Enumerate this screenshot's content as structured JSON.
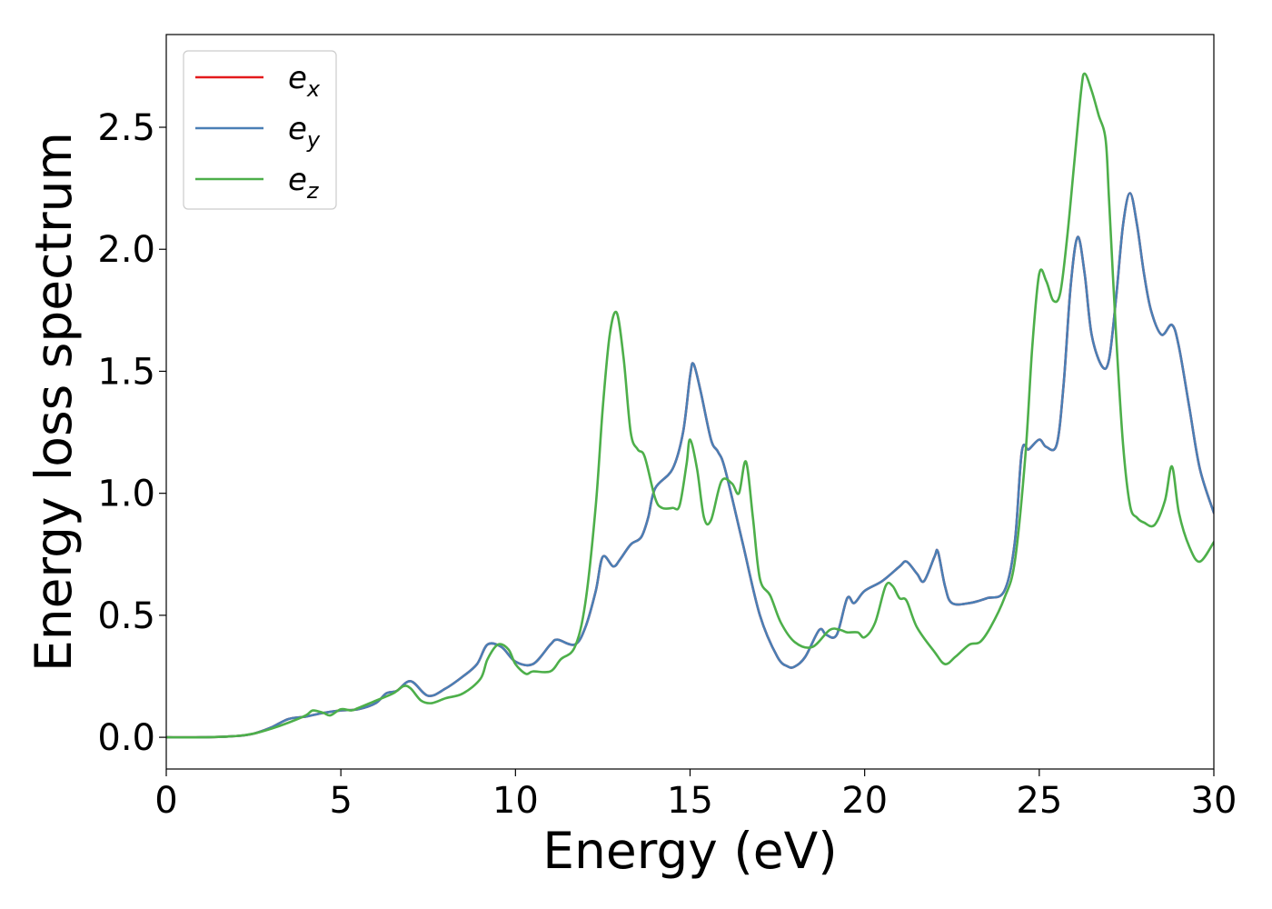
{
  "chart_data": {
    "type": "line",
    "title": "",
    "xlabel": "Energy (eV)",
    "ylabel": "Energy loss spectrum",
    "xlim": [
      0,
      30
    ],
    "ylim": [
      -0.13,
      2.88
    ],
    "xticks": [
      0,
      5,
      10,
      15,
      20,
      25,
      30
    ],
    "xtick_labels": [
      "0",
      "5",
      "10",
      "15",
      "20",
      "25",
      "30"
    ],
    "yticks": [
      0.0,
      0.5,
      1.0,
      1.5,
      2.0,
      2.5
    ],
    "ytick_labels": [
      "0.0",
      "0.5",
      "1.0",
      "1.5",
      "2.0",
      "2.5"
    ],
    "grid": false,
    "legend_position": "top-left",
    "series": [
      {
        "name": "e",
        "sub": "x",
        "color": "#e41a1c",
        "points": [
          [
            0,
            0
          ],
          [
            1,
            0
          ],
          [
            2,
            0.005
          ],
          [
            2.5,
            0.015
          ],
          [
            3,
            0.04
          ],
          [
            3.5,
            0.075
          ],
          [
            4,
            0.085
          ],
          [
            4.5,
            0.1
          ],
          [
            5,
            0.11
          ],
          [
            5.5,
            0.115
          ],
          [
            6,
            0.14
          ],
          [
            6.3,
            0.18
          ],
          [
            6.6,
            0.19
          ],
          [
            7,
            0.23
          ],
          [
            7.5,
            0.17
          ],
          [
            8,
            0.2
          ],
          [
            8.5,
            0.25
          ],
          [
            8.9,
            0.3
          ],
          [
            9.2,
            0.38
          ],
          [
            9.6,
            0.37
          ],
          [
            10,
            0.31
          ],
          [
            10.5,
            0.3
          ],
          [
            11,
            0.38
          ],
          [
            11.2,
            0.4
          ],
          [
            11.7,
            0.38
          ],
          [
            12,
            0.45
          ],
          [
            12.3,
            0.6
          ],
          [
            12.5,
            0.74
          ],
          [
            12.8,
            0.7
          ],
          [
            13,
            0.73
          ],
          [
            13.3,
            0.79
          ],
          [
            13.6,
            0.82
          ],
          [
            13.8,
            0.9
          ],
          [
            14,
            1.02
          ],
          [
            14.5,
            1.1
          ],
          [
            14.8,
            1.25
          ],
          [
            15,
            1.48
          ],
          [
            15.1,
            1.53
          ],
          [
            15.3,
            1.42
          ],
          [
            15.6,
            1.22
          ],
          [
            15.8,
            1.17
          ],
          [
            16,
            1.1
          ],
          [
            16.5,
            0.8
          ],
          [
            17,
            0.5
          ],
          [
            17.5,
            0.33
          ],
          [
            17.8,
            0.29
          ],
          [
            18,
            0.29
          ],
          [
            18.3,
            0.33
          ],
          [
            18.7,
            0.44
          ],
          [
            18.9,
            0.42
          ],
          [
            19.2,
            0.42
          ],
          [
            19.5,
            0.57
          ],
          [
            19.7,
            0.55
          ],
          [
            20,
            0.6
          ],
          [
            20.5,
            0.64
          ],
          [
            21,
            0.7
          ],
          [
            21.2,
            0.72
          ],
          [
            21.5,
            0.67
          ],
          [
            21.7,
            0.64
          ],
          [
            22,
            0.74
          ],
          [
            22.1,
            0.76
          ],
          [
            22.3,
            0.62
          ],
          [
            22.5,
            0.55
          ],
          [
            23,
            0.55
          ],
          [
            23.5,
            0.57
          ],
          [
            24,
            0.6
          ],
          [
            24.3,
            0.8
          ],
          [
            24.5,
            1.17
          ],
          [
            24.7,
            1.18
          ],
          [
            25,
            1.22
          ],
          [
            25.2,
            1.19
          ],
          [
            25.5,
            1.2
          ],
          [
            25.7,
            1.45
          ],
          [
            25.9,
            1.85
          ],
          [
            26.1,
            2.05
          ],
          [
            26.3,
            1.9
          ],
          [
            26.5,
            1.65
          ],
          [
            26.8,
            1.52
          ],
          [
            27,
            1.55
          ],
          [
            27.2,
            1.8
          ],
          [
            27.4,
            2.1
          ],
          [
            27.6,
            2.23
          ],
          [
            27.8,
            2.1
          ],
          [
            28,
            1.9
          ],
          [
            28.2,
            1.75
          ],
          [
            28.5,
            1.65
          ],
          [
            28.8,
            1.69
          ],
          [
            29,
            1.6
          ],
          [
            29.3,
            1.35
          ],
          [
            29.6,
            1.1
          ],
          [
            30,
            0.92
          ]
        ]
      },
      {
        "name": "e",
        "sub": "y",
        "color": "#4a7fb5",
        "points": [
          [
            0,
            0
          ],
          [
            1,
            0
          ],
          [
            2,
            0.005
          ],
          [
            2.5,
            0.015
          ],
          [
            3,
            0.04
          ],
          [
            3.5,
            0.075
          ],
          [
            4,
            0.085
          ],
          [
            4.5,
            0.1
          ],
          [
            5,
            0.11
          ],
          [
            5.5,
            0.115
          ],
          [
            6,
            0.14
          ],
          [
            6.3,
            0.18
          ],
          [
            6.6,
            0.19
          ],
          [
            7,
            0.23
          ],
          [
            7.5,
            0.17
          ],
          [
            8,
            0.2
          ],
          [
            8.5,
            0.25
          ],
          [
            8.9,
            0.3
          ],
          [
            9.2,
            0.38
          ],
          [
            9.6,
            0.37
          ],
          [
            10,
            0.31
          ],
          [
            10.5,
            0.3
          ],
          [
            11,
            0.38
          ],
          [
            11.2,
            0.4
          ],
          [
            11.7,
            0.38
          ],
          [
            12,
            0.45
          ],
          [
            12.3,
            0.6
          ],
          [
            12.5,
            0.74
          ],
          [
            12.8,
            0.7
          ],
          [
            13,
            0.73
          ],
          [
            13.3,
            0.79
          ],
          [
            13.6,
            0.82
          ],
          [
            13.8,
            0.9
          ],
          [
            14,
            1.02
          ],
          [
            14.5,
            1.1
          ],
          [
            14.8,
            1.25
          ],
          [
            15,
            1.48
          ],
          [
            15.1,
            1.53
          ],
          [
            15.3,
            1.42
          ],
          [
            15.6,
            1.22
          ],
          [
            15.8,
            1.17
          ],
          [
            16,
            1.1
          ],
          [
            16.5,
            0.8
          ],
          [
            17,
            0.5
          ],
          [
            17.5,
            0.33
          ],
          [
            17.8,
            0.29
          ],
          [
            18,
            0.29
          ],
          [
            18.3,
            0.33
          ],
          [
            18.7,
            0.44
          ],
          [
            18.9,
            0.42
          ],
          [
            19.2,
            0.42
          ],
          [
            19.5,
            0.57
          ],
          [
            19.7,
            0.55
          ],
          [
            20,
            0.6
          ],
          [
            20.5,
            0.64
          ],
          [
            21,
            0.7
          ],
          [
            21.2,
            0.72
          ],
          [
            21.5,
            0.67
          ],
          [
            21.7,
            0.64
          ],
          [
            22,
            0.74
          ],
          [
            22.1,
            0.76
          ],
          [
            22.3,
            0.62
          ],
          [
            22.5,
            0.55
          ],
          [
            23,
            0.55
          ],
          [
            23.5,
            0.57
          ],
          [
            24,
            0.6
          ],
          [
            24.3,
            0.8
          ],
          [
            24.5,
            1.17
          ],
          [
            24.7,
            1.18
          ],
          [
            25,
            1.22
          ],
          [
            25.2,
            1.19
          ],
          [
            25.5,
            1.2
          ],
          [
            25.7,
            1.45
          ],
          [
            25.9,
            1.85
          ],
          [
            26.1,
            2.05
          ],
          [
            26.3,
            1.9
          ],
          [
            26.5,
            1.65
          ],
          [
            26.8,
            1.52
          ],
          [
            27,
            1.55
          ],
          [
            27.2,
            1.8
          ],
          [
            27.4,
            2.1
          ],
          [
            27.6,
            2.23
          ],
          [
            27.8,
            2.1
          ],
          [
            28,
            1.9
          ],
          [
            28.2,
            1.75
          ],
          [
            28.5,
            1.65
          ],
          [
            28.8,
            1.69
          ],
          [
            29,
            1.6
          ],
          [
            29.3,
            1.35
          ],
          [
            29.6,
            1.1
          ],
          [
            30,
            0.92
          ]
        ]
      },
      {
        "name": "e",
        "sub": "z",
        "color": "#4daf4a",
        "points": [
          [
            0,
            0
          ],
          [
            1,
            0
          ],
          [
            2,
            0.005
          ],
          [
            2.5,
            0.015
          ],
          [
            3,
            0.035
          ],
          [
            3.5,
            0.06
          ],
          [
            4,
            0.09
          ],
          [
            4.2,
            0.11
          ],
          [
            4.5,
            0.1
          ],
          [
            4.7,
            0.09
          ],
          [
            5,
            0.115
          ],
          [
            5.3,
            0.11
          ],
          [
            5.5,
            0.12
          ],
          [
            6,
            0.15
          ],
          [
            6.5,
            0.18
          ],
          [
            6.8,
            0.21
          ],
          [
            7,
            0.2
          ],
          [
            7.3,
            0.15
          ],
          [
            7.6,
            0.14
          ],
          [
            8,
            0.16
          ],
          [
            8.5,
            0.18
          ],
          [
            9,
            0.24
          ],
          [
            9.2,
            0.32
          ],
          [
            9.5,
            0.38
          ],
          [
            9.8,
            0.36
          ],
          [
            10,
            0.3
          ],
          [
            10.3,
            0.26
          ],
          [
            10.5,
            0.27
          ],
          [
            11,
            0.27
          ],
          [
            11.3,
            0.32
          ],
          [
            11.7,
            0.37
          ],
          [
            12,
            0.55
          ],
          [
            12.3,
            0.95
          ],
          [
            12.5,
            1.35
          ],
          [
            12.7,
            1.65
          ],
          [
            12.9,
            1.74
          ],
          [
            13.1,
            1.55
          ],
          [
            13.3,
            1.25
          ],
          [
            13.5,
            1.18
          ],
          [
            13.7,
            1.15
          ],
          [
            14,
            0.98
          ],
          [
            14.2,
            0.94
          ],
          [
            14.5,
            0.94
          ],
          [
            14.7,
            0.95
          ],
          [
            14.9,
            1.12
          ],
          [
            15,
            1.22
          ],
          [
            15.2,
            1.1
          ],
          [
            15.4,
            0.9
          ],
          [
            15.6,
            0.89
          ],
          [
            15.9,
            1.05
          ],
          [
            16.2,
            1.04
          ],
          [
            16.4,
            1.0
          ],
          [
            16.6,
            1.13
          ],
          [
            16.8,
            0.9
          ],
          [
            17,
            0.65
          ],
          [
            17.3,
            0.58
          ],
          [
            17.6,
            0.47
          ],
          [
            18,
            0.39
          ],
          [
            18.5,
            0.37
          ],
          [
            19,
            0.44
          ],
          [
            19.3,
            0.44
          ],
          [
            19.5,
            0.43
          ],
          [
            19.8,
            0.43
          ],
          [
            20,
            0.41
          ],
          [
            20.3,
            0.47
          ],
          [
            20.6,
            0.62
          ],
          [
            20.8,
            0.62
          ],
          [
            21,
            0.57
          ],
          [
            21.2,
            0.56
          ],
          [
            21.5,
            0.45
          ],
          [
            22,
            0.35
          ],
          [
            22.3,
            0.3
          ],
          [
            22.6,
            0.33
          ],
          [
            23,
            0.38
          ],
          [
            23.3,
            0.39
          ],
          [
            23.6,
            0.45
          ],
          [
            24,
            0.57
          ],
          [
            24.3,
            0.72
          ],
          [
            24.6,
            1.15
          ],
          [
            24.8,
            1.6
          ],
          [
            25,
            1.9
          ],
          [
            25.2,
            1.87
          ],
          [
            25.4,
            1.79
          ],
          [
            25.6,
            1.82
          ],
          [
            25.8,
            2.05
          ],
          [
            26,
            2.35
          ],
          [
            26.2,
            2.65
          ],
          [
            26.3,
            2.72
          ],
          [
            26.5,
            2.65
          ],
          [
            26.7,
            2.55
          ],
          [
            26.9,
            2.45
          ],
          [
            27,
            2.2
          ],
          [
            27.2,
            1.65
          ],
          [
            27.4,
            1.2
          ],
          [
            27.6,
            0.95
          ],
          [
            27.8,
            0.9
          ],
          [
            28,
            0.88
          ],
          [
            28.3,
            0.87
          ],
          [
            28.6,
            0.97
          ],
          [
            28.8,
            1.11
          ],
          [
            29,
            0.92
          ],
          [
            29.3,
            0.78
          ],
          [
            29.6,
            0.72
          ],
          [
            30,
            0.8
          ]
        ]
      }
    ]
  }
}
